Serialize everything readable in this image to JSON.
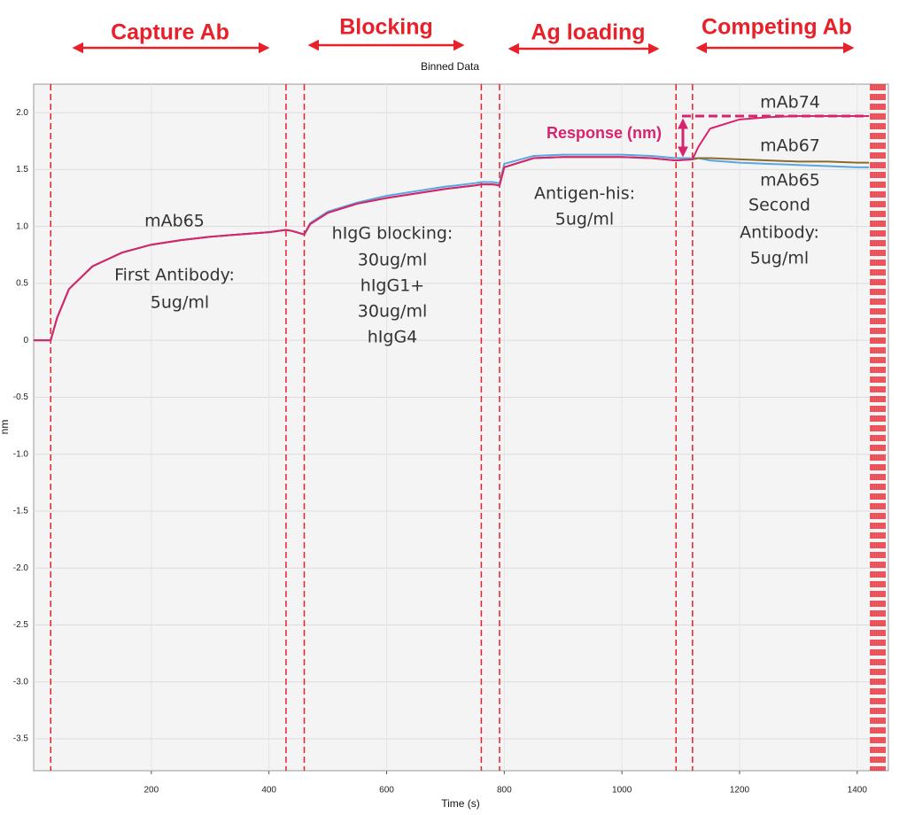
{
  "chart_data": {
    "type": "line",
    "title": "Binned Data",
    "xlabel": "Time (s)",
    "ylabel": "nm",
    "phases": [
      "Capture Ab",
      "Blocking",
      "Ag loading",
      "Competing Ab"
    ],
    "notes": [
      [
        "mAb65",
        "First Antibody:",
        "5ug/ml"
      ],
      [
        "hIgG blocking:",
        "30ug/ml",
        "hIgG1+",
        "30ug/ml",
        "hIgG4"
      ],
      [
        "Antigen-his:",
        "5ug/ml"
      ],
      [
        "mAb74",
        "mAb67",
        "mAb65",
        "Second",
        "Antibody:",
        "5ug/ml"
      ]
    ],
    "response_label": "Response (nm)",
    "x": [
      0,
      29,
      40,
      60,
      100,
      150,
      200,
      250,
      300,
      350,
      400,
      429,
      440,
      460,
      470,
      500,
      550,
      600,
      650,
      700,
      750,
      761,
      780,
      792,
      800,
      850,
      900,
      950,
      1000,
      1050,
      1092,
      1120,
      1130,
      1150,
      1200,
      1250,
      1300,
      1350,
      1400,
      1420
    ],
    "series": [
      {
        "color": "#5aa6e0",
        "values": [
          0,
          0,
          0.2,
          0.45,
          0.65,
          0.77,
          0.84,
          0.88,
          0.91,
          0.93,
          0.95,
          0.97,
          0.96,
          0.93,
          1.03,
          1.13,
          1.21,
          1.27,
          1.31,
          1.35,
          1.38,
          1.39,
          1.39,
          1.38,
          1.55,
          1.62,
          1.63,
          1.63,
          1.63,
          1.62,
          1.6,
          1.6,
          1.6,
          1.58,
          1.56,
          1.55,
          1.54,
          1.53,
          1.52,
          1.52
        ]
      },
      {
        "color": "#8b6a2b",
        "values": [
          0,
          0,
          0.2,
          0.45,
          0.65,
          0.77,
          0.84,
          0.88,
          0.91,
          0.93,
          0.95,
          0.97,
          0.96,
          0.93,
          1.02,
          1.12,
          1.2,
          1.25,
          1.29,
          1.33,
          1.36,
          1.37,
          1.37,
          1.36,
          1.52,
          1.6,
          1.61,
          1.61,
          1.61,
          1.6,
          1.58,
          1.59,
          1.6,
          1.6,
          1.59,
          1.58,
          1.57,
          1.57,
          1.56,
          1.56
        ]
      },
      {
        "color": "#d6246e",
        "values": [
          0,
          0,
          0.2,
          0.45,
          0.65,
          0.77,
          0.84,
          0.88,
          0.91,
          0.93,
          0.95,
          0.97,
          0.96,
          0.93,
          1.02,
          1.12,
          1.2,
          1.25,
          1.29,
          1.33,
          1.36,
          1.37,
          1.37,
          1.36,
          1.52,
          1.6,
          1.61,
          1.61,
          1.61,
          1.6,
          1.58,
          1.59,
          1.7,
          1.86,
          1.94,
          1.96,
          1.97,
          1.97,
          1.97,
          1.97
        ]
      }
    ],
    "step_boundaries": [
      29,
      429,
      460,
      761,
      792,
      1092,
      1120,
      1423,
      1426,
      1429,
      1432,
      1435,
      1438,
      1441,
      1444,
      1447
    ],
    "boundary_color": "#e8202a",
    "xlim": [
      0,
      1453
    ],
    "ylim": [
      -3.78,
      2.25
    ],
    "xticks": [
      200,
      400,
      600,
      800,
      1000,
      1200,
      1400
    ],
    "yticks": [
      {
        "value": 2,
        "label": "2.0"
      },
      1.5,
      {
        "value": 1,
        "label": "1.0"
      },
      0.5,
      0,
      -0.5,
      {
        "value": -1,
        "label": "-1.0"
      },
      -1.5,
      {
        "value": -2,
        "label": "-2.0"
      },
      -2.5,
      {
        "value": -3,
        "label": "-3.0"
      },
      -3.5
    ],
    "grid": true
  }
}
